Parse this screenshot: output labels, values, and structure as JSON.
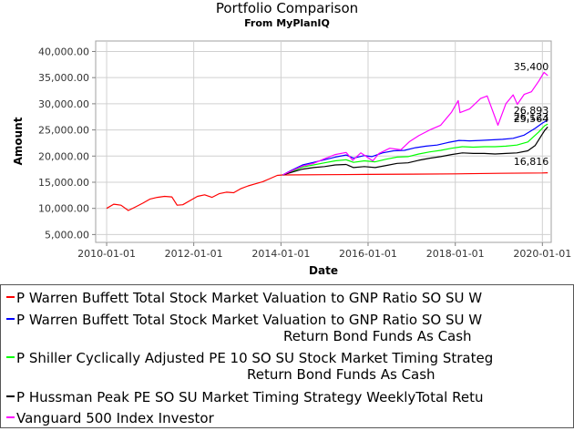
{
  "chart_data": {
    "type": "line",
    "title": "Portfolio Comparison",
    "subtitle": "From MyPlanIQ",
    "xlabel": "Date",
    "ylabel": "Amount",
    "xlim": [
      "2009-10-01",
      "2020-03-15"
    ],
    "ylim": [
      3500,
      42000
    ],
    "grid": true,
    "legend_position": "bottom",
    "x_ticks": [
      "2010-01-01",
      "2012-01-01",
      "2014-01-01",
      "2016-01-01",
      "2018-01-01",
      "2020-01-01"
    ],
    "y_ticks": [
      "5,000.00",
      "10,000.00",
      "15,000.00",
      "20,000.00",
      "25,000.00",
      "30,000.00",
      "35,000.00",
      "40,000.00"
    ],
    "y_tick_values": [
      5000,
      10000,
      15000,
      20000,
      25000,
      30000,
      35000,
      40000
    ],
    "end_labels": [
      "35,400",
      "26,893",
      "26,123",
      "25,564",
      "16,816"
    ],
    "series": [
      {
        "name": "P Warren Buffett Total Stock Market Valuation to GNP Ratio SO SU W",
        "color": "#ff0000",
        "points": [
          [
            "2010-01-01",
            10000
          ],
          [
            "2010-03-01",
            10800
          ],
          [
            "2010-05-01",
            10600
          ],
          [
            "2010-07-01",
            9600
          ],
          [
            "2010-09-01",
            10300
          ],
          [
            "2010-11-01",
            11000
          ],
          [
            "2011-01-01",
            11800
          ],
          [
            "2011-03-01",
            12100
          ],
          [
            "2011-05-01",
            12300
          ],
          [
            "2011-07-01",
            12200
          ],
          [
            "2011-08-15",
            10600
          ],
          [
            "2011-10-01",
            10700
          ],
          [
            "2011-12-01",
            11500
          ],
          [
            "2012-02-01",
            12300
          ],
          [
            "2012-04-01",
            12600
          ],
          [
            "2012-06-01",
            12100
          ],
          [
            "2012-08-01",
            12800
          ],
          [
            "2012-10-01",
            13100
          ],
          [
            "2012-12-01",
            13000
          ],
          [
            "2013-02-01",
            13800
          ],
          [
            "2013-04-01",
            14300
          ],
          [
            "2013-06-01",
            14700
          ],
          [
            "2013-08-01",
            15100
          ],
          [
            "2013-10-01",
            15700
          ],
          [
            "2013-12-01",
            16300
          ],
          [
            "2014-01-15",
            16400
          ],
          [
            "2015-01-01",
            16450
          ],
          [
            "2016-01-01",
            16500
          ],
          [
            "2017-01-01",
            16550
          ],
          [
            "2018-01-01",
            16600
          ],
          [
            "2019-01-01",
            16700
          ],
          [
            "2020-01-01",
            16780
          ],
          [
            "2020-02-15",
            16816
          ]
        ]
      },
      {
        "name": "P Warren Buffett Total Stock Market Valuation to GNP Ratio SO SU W Return Bond Funds As Cash",
        "color": "#0000ff",
        "points": [
          [
            "2014-01-15",
            16400
          ],
          [
            "2014-04-01",
            17300
          ],
          [
            "2014-07-01",
            18300
          ],
          [
            "2014-10-01",
            18800
          ],
          [
            "2015-01-01",
            19300
          ],
          [
            "2015-04-01",
            19800
          ],
          [
            "2015-07-01",
            20200
          ],
          [
            "2015-09-01",
            19600
          ],
          [
            "2015-12-01",
            20100
          ],
          [
            "2016-02-01",
            19900
          ],
          [
            "2016-05-01",
            20600
          ],
          [
            "2016-08-01",
            21000
          ],
          [
            "2016-11-01",
            21100
          ],
          [
            "2017-02-01",
            21600
          ],
          [
            "2017-05-01",
            21900
          ],
          [
            "2017-08-01",
            22100
          ],
          [
            "2017-11-01",
            22600
          ],
          [
            "2018-02-01",
            23000
          ],
          [
            "2018-05-01",
            22900
          ],
          [
            "2018-08-01",
            23000
          ],
          [
            "2018-11-01",
            23100
          ],
          [
            "2019-02-01",
            23200
          ],
          [
            "2019-05-01",
            23400
          ],
          [
            "2019-08-01",
            24000
          ],
          [
            "2019-11-01",
            25300
          ],
          [
            "2020-01-01",
            26300
          ],
          [
            "2020-02-15",
            26893
          ]
        ]
      },
      {
        "name": "P Shiller Cyclically Adjusted PE 10 SO SU Stock Market Timing Strateg Return Bond Funds As Cash",
        "color": "#00ff00",
        "points": [
          [
            "2014-01-15",
            16400
          ],
          [
            "2014-04-01",
            17000
          ],
          [
            "2014-07-01",
            17900
          ],
          [
            "2014-10-01",
            18300
          ],
          [
            "2015-01-01",
            18700
          ],
          [
            "2015-04-01",
            19100
          ],
          [
            "2015-07-01",
            19300
          ],
          [
            "2015-09-01",
            18800
          ],
          [
            "2015-12-01",
            19100
          ],
          [
            "2016-03-01",
            18900
          ],
          [
            "2016-06-01",
            19400
          ],
          [
            "2016-09-01",
            19800
          ],
          [
            "2016-12-01",
            19900
          ],
          [
            "2017-03-01",
            20400
          ],
          [
            "2017-06-01",
            20800
          ],
          [
            "2017-09-01",
            21100
          ],
          [
            "2017-12-01",
            21500
          ],
          [
            "2018-03-01",
            21800
          ],
          [
            "2018-06-01",
            21700
          ],
          [
            "2018-09-01",
            21800
          ],
          [
            "2018-12-01",
            21800
          ],
          [
            "2019-03-01",
            21900
          ],
          [
            "2019-06-01",
            22100
          ],
          [
            "2019-09-01",
            22700
          ],
          [
            "2019-12-01",
            24600
          ],
          [
            "2020-01-20",
            25800
          ],
          [
            "2020-02-15",
            26123
          ]
        ]
      },
      {
        "name": "P  Hussman Peak PE SO SU Market Timing Strategy WeeklyTotal Retu",
        "color": "#000000",
        "points": [
          [
            "2014-01-15",
            16400
          ],
          [
            "2014-04-01",
            16900
          ],
          [
            "2014-07-01",
            17500
          ],
          [
            "2014-10-01",
            17800
          ],
          [
            "2015-01-01",
            18000
          ],
          [
            "2015-04-01",
            18300
          ],
          [
            "2015-07-01",
            18400
          ],
          [
            "2015-09-01",
            17800
          ],
          [
            "2015-12-01",
            18000
          ],
          [
            "2016-03-01",
            17800
          ],
          [
            "2016-06-01",
            18200
          ],
          [
            "2016-09-01",
            18600
          ],
          [
            "2016-12-01",
            18700
          ],
          [
            "2017-03-01",
            19200
          ],
          [
            "2017-06-01",
            19600
          ],
          [
            "2017-09-01",
            19900
          ],
          [
            "2017-12-01",
            20300
          ],
          [
            "2018-03-01",
            20600
          ],
          [
            "2018-06-01",
            20500
          ],
          [
            "2018-09-01",
            20500
          ],
          [
            "2018-12-01",
            20400
          ],
          [
            "2019-03-01",
            20500
          ],
          [
            "2019-06-01",
            20600
          ],
          [
            "2019-09-01",
            21000
          ],
          [
            "2019-11-01",
            22000
          ],
          [
            "2019-12-15",
            23600
          ],
          [
            "2020-01-20",
            24900
          ],
          [
            "2020-02-15",
            25564
          ]
        ]
      },
      {
        "name": "Vanguard 500 Index Investor",
        "color": "#ff00ff",
        "points": [
          [
            "2014-01-15",
            16400
          ],
          [
            "2014-04-01",
            17200
          ],
          [
            "2014-07-01",
            18100
          ],
          [
            "2014-10-01",
            18600
          ],
          [
            "2015-01-01",
            19500
          ],
          [
            "2015-04-01",
            20300
          ],
          [
            "2015-07-01",
            20700
          ],
          [
            "2015-08-25",
            19200
          ],
          [
            "2015-11-01",
            20600
          ],
          [
            "2016-02-10",
            19100
          ],
          [
            "2016-04-01",
            20500
          ],
          [
            "2016-07-01",
            21500
          ],
          [
            "2016-10-01",
            21200
          ],
          [
            "2016-12-15",
            22800
          ],
          [
            "2017-03-01",
            23900
          ],
          [
            "2017-06-01",
            25000
          ],
          [
            "2017-09-01",
            25900
          ],
          [
            "2017-12-01",
            28400
          ],
          [
            "2018-01-25",
            30600
          ],
          [
            "2018-02-10",
            28300
          ],
          [
            "2018-05-01",
            29000
          ],
          [
            "2018-08-01",
            31000
          ],
          [
            "2018-09-25",
            31500
          ],
          [
            "2018-12-24",
            25900
          ],
          [
            "2019-03-01",
            30000
          ],
          [
            "2019-05-01",
            31700
          ],
          [
            "2019-06-05",
            29900
          ],
          [
            "2019-08-01",
            31800
          ],
          [
            "2019-10-01",
            32300
          ],
          [
            "2019-12-01",
            34300
          ],
          [
            "2020-01-15",
            36000
          ],
          [
            "2020-02-15",
            35400
          ]
        ]
      }
    ]
  },
  "legend": {
    "items": [
      {
        "line1": "P Warren Buffett Total Stock Market Valuation to GNP Ratio SO SU W",
        "line2": ""
      },
      {
        "line1": "P Warren Buffett Total Stock Market Valuation to GNP Ratio SO SU W",
        "line2": "Return Bond Funds As Cash"
      },
      {
        "line1": "P Shiller Cyclically Adjusted PE 10 SO SU Stock Market Timing Strateg",
        "line2": "Return Bond Funds As Cash"
      },
      {
        "line1": "P  Hussman Peak PE SO SU Market Timing Strategy WeeklyTotal Retu",
        "line2": ""
      },
      {
        "line1": "Vanguard 500 Index Investor",
        "line2": ""
      }
    ]
  }
}
